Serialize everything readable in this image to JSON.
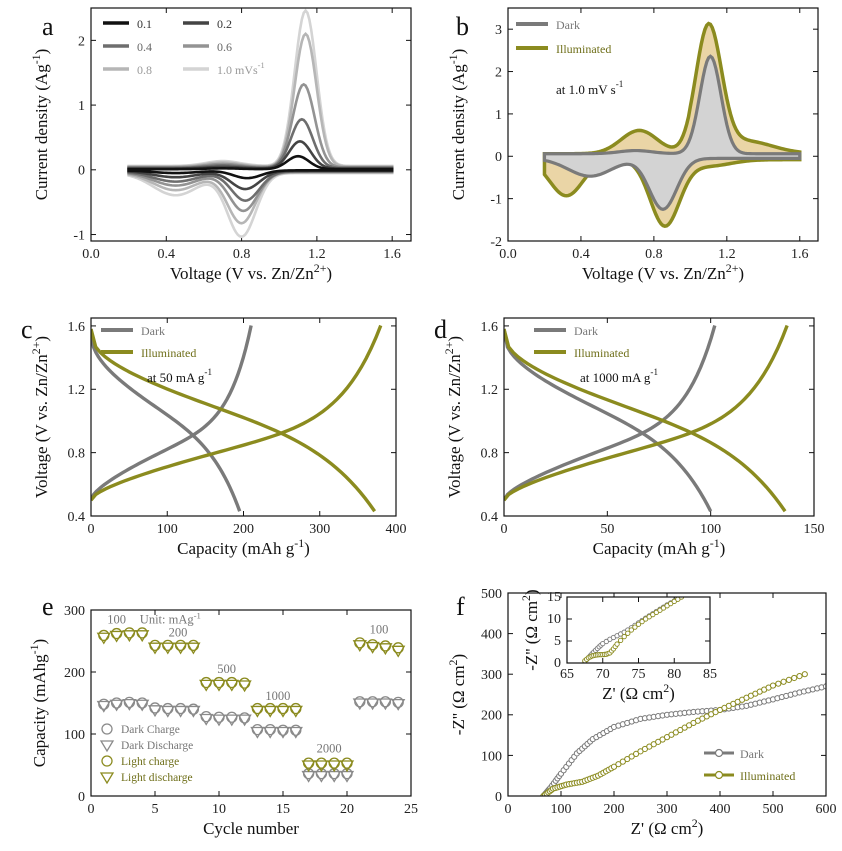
{
  "colors": {
    "dark": "#7a7a7a",
    "illum": "#8b8b1f",
    "fill_dark": "#d3d3d3",
    "fill_illum": "#ead5a6",
    "cv": [
      "#111111",
      "#444444",
      "#6e6e6e",
      "#939393",
      "#b6b6b6",
      "#d4d4d4"
    ]
  },
  "chart_data": [
    {
      "type": "line",
      "panel": "a",
      "xlabel": "Voltage (V vs. Zn/Zn",
      "xlabel_sup": "2+",
      "xlabel_end": ")",
      "ylabel": "Current density (Ag",
      "ylabel_sup": "-1",
      "ylabel_end": ")",
      "xlim": [
        0,
        1.7
      ],
      "ylim": [
        -1.1,
        2.5
      ],
      "xticks": [
        "0.0",
        "0.4",
        "0.8",
        "1.2",
        "1.6"
      ],
      "yticks": [
        "-1",
        "0",
        "1",
        "2"
      ],
      "legend": [
        "0.1",
        "0.2",
        "0.4",
        "0.6",
        "0.8",
        "1.0 mVs"
      ],
      "legend_unit_sup": "-1",
      "series": [
        {
          "name": "0.1",
          "peak_ox": [
            1.1,
            0.2
          ],
          "peak_red": [
            0.83,
            -0.12
          ]
        },
        {
          "name": "0.2",
          "peak_ox": [
            1.11,
            0.42
          ],
          "peak_red": [
            0.82,
            -0.28
          ]
        },
        {
          "name": "0.4",
          "peak_ox": [
            1.12,
            0.75
          ],
          "peak_red": [
            0.82,
            -0.45
          ]
        },
        {
          "name": "0.6",
          "peak_ox": [
            1.13,
            1.28
          ],
          "peak_red": [
            0.81,
            -0.6
          ]
        },
        {
          "name": "0.8",
          "peak_ox": [
            1.14,
            2.05
          ],
          "peak_red": [
            0.8,
            -0.78
          ]
        },
        {
          "name": "1.0",
          "peak_ox": [
            1.14,
            2.4
          ],
          "peak_red": [
            0.8,
            -0.98
          ]
        }
      ]
    },
    {
      "type": "area",
      "panel": "b",
      "xlabel": "Voltage (V vs. Zn/Zn",
      "xlabel_sup": "2+",
      "xlabel_end": ")",
      "ylabel": "Current density (Ag",
      "ylabel_sup": "-1",
      "ylabel_end": ")",
      "xlim": [
        0,
        1.7
      ],
      "ylim": [
        -2,
        3.5
      ],
      "xticks": [
        "0.0",
        "0.4",
        "0.8",
        "1.2",
        "1.6"
      ],
      "yticks": [
        "-2",
        "-1",
        "0",
        "1",
        "2",
        "3"
      ],
      "legend": [
        "Dark",
        "Illuminated"
      ],
      "annotation": "at 1.0 mV s",
      "annotation_sup": "-1",
      "series": [
        {
          "name": "Dark",
          "peak_ox": [
            1.11,
            2.3
          ],
          "peak_red": [
            0.85,
            -1.2
          ]
        },
        {
          "name": "Illuminated",
          "peak_ox": [
            1.1,
            3.25
          ],
          "peak_red": [
            0.86,
            -1.55
          ]
        }
      ]
    },
    {
      "type": "line",
      "panel": "c",
      "xlabel": "Capacity (mAh g",
      "xlabel_sup": "-1",
      "xlabel_end": ")",
      "ylabel": "Voltage (V vs. Zn/Zn",
      "ylabel_sup": "2+",
      "ylabel_end": ")",
      "xlim": [
        0,
        400
      ],
      "ylim": [
        0.4,
        1.65
      ],
      "xticks": [
        "0",
        "100",
        "200",
        "300",
        "400"
      ],
      "yticks": [
        "0.4",
        "0.8",
        "1.2",
        "1.6"
      ],
      "legend": [
        "Dark",
        "Illuminated"
      ],
      "annotation": "at 50 mA g",
      "annotation_sup": "-1",
      "series": [
        {
          "name": "Dark",
          "charge_capacity": 210,
          "discharge_capacity": 195
        },
        {
          "name": "Illuminated",
          "charge_capacity": 380,
          "discharge_capacity": 372
        }
      ]
    },
    {
      "type": "line",
      "panel": "d",
      "xlabel": "Capacity (mAh g",
      "xlabel_sup": "-1",
      "xlabel_end": ")",
      "ylabel": "Voltage (V vs. Zn/Zn",
      "ylabel_sup": "2+",
      "ylabel_end": ")",
      "xlim": [
        0,
        150
      ],
      "ylim": [
        0.4,
        1.65
      ],
      "xticks": [
        "0",
        "50",
        "100",
        "150"
      ],
      "yticks": [
        "0.4",
        "0.8",
        "1.2",
        "1.6"
      ],
      "legend": [
        "Dark",
        "Illuminated"
      ],
      "annotation": "at 1000 mA g",
      "annotation_sup": "-1",
      "series": [
        {
          "name": "Dark",
          "charge_capacity": 102,
          "discharge_capacity": 100
        },
        {
          "name": "Illuminated",
          "charge_capacity": 137,
          "discharge_capacity": 136
        }
      ]
    },
    {
      "type": "scatter",
      "panel": "e",
      "xlabel": "Cycle number",
      "ylabel": "Capacity (mAhg",
      "ylabel_sup": "-1",
      "ylabel_end": ")",
      "xlim": [
        0,
        25
      ],
      "ylim": [
        0,
        300
      ],
      "xticks": [
        "0",
        "5",
        "10",
        "15",
        "20",
        "25"
      ],
      "yticks": [
        "0",
        "100",
        "200",
        "300"
      ],
      "legend": [
        "Dark Charge",
        "Dark Discharge",
        "Light charge",
        "Light discharge"
      ],
      "rate_labels": [
        {
          "text": "100",
          "x": 2.0,
          "y": 278
        },
        {
          "text": "Unit: mAg",
          "sup": "-1",
          "x": 6.2,
          "y": 278
        },
        {
          "text": "200",
          "x": 6.8,
          "y": 257
        },
        {
          "text": "500",
          "x": 10.6,
          "y": 198
        },
        {
          "text": "1000",
          "x": 14.6,
          "y": 155
        },
        {
          "text": "2000",
          "x": 18.6,
          "y": 70
        },
        {
          "text": "100",
          "x": 22.5,
          "y": 262
        }
      ],
      "cycles": [
        1,
        2,
        3,
        4,
        5,
        6,
        7,
        8,
        9,
        10,
        11,
        12,
        13,
        14,
        15,
        16,
        17,
        18,
        19,
        20,
        21,
        22,
        23,
        24
      ],
      "series": [
        {
          "name": "Dark Charge",
          "values": [
            148,
            150,
            151,
            150,
            142,
            141,
            141,
            140,
            128,
            127,
            127,
            126,
            107,
            107,
            106,
            106,
            36,
            36,
            36,
            36,
            152,
            152,
            152,
            151
          ]
        },
        {
          "name": "Dark Discharge",
          "values": [
            146,
            148,
            149,
            148,
            139,
            138,
            138,
            138,
            125,
            124,
            124,
            124,
            104,
            104,
            104,
            104,
            33,
            33,
            33,
            33,
            150,
            150,
            150,
            149
          ]
        },
        {
          "name": "Light charge",
          "values": [
            259,
            262,
            263,
            263,
            243,
            243,
            243,
            243,
            183,
            183,
            183,
            182,
            141,
            141,
            141,
            141,
            53,
            53,
            53,
            53,
            247,
            244,
            242,
            239
          ]
        },
        {
          "name": "Light discharge",
          "values": [
            256,
            259,
            260,
            260,
            240,
            240,
            240,
            240,
            180,
            180,
            180,
            179,
            138,
            138,
            138,
            138,
            50,
            50,
            50,
            50,
            244,
            241,
            239,
            235
          ]
        }
      ]
    },
    {
      "type": "line",
      "panel": "f",
      "xlabel": "Z' (Ω cm",
      "xlabel_sup": "2",
      "xlabel_end": ")",
      "ylabel": "-Z'' (Ω cm",
      "ylabel_sup": "2",
      "ylabel_end": ")",
      "xlim": [
        0,
        600
      ],
      "ylim": [
        0,
        500
      ],
      "xticks": [
        "0",
        "100",
        "200",
        "300",
        "400",
        "500",
        "600"
      ],
      "yticks": [
        "0",
        "100",
        "200",
        "300",
        "400",
        "500"
      ],
      "legend": [
        "Dark",
        "Illuminated"
      ],
      "series": [
        {
          "name": "Dark",
          "x": [
            67,
            80,
            100,
            130,
            160,
            200,
            250,
            300,
            350,
            400,
            450,
            500,
            550,
            600
          ],
          "y": [
            0,
            20,
            55,
            105,
            140,
            170,
            190,
            200,
            207,
            212,
            222,
            238,
            255,
            270
          ]
        },
        {
          "name": "Illuminated",
          "x": [
            67,
            85,
            110,
            140,
            170,
            200,
            250,
            300,
            350,
            400,
            450,
            500,
            560
          ],
          "y": [
            0,
            18,
            28,
            35,
            50,
            72,
            110,
            145,
            180,
            212,
            242,
            272,
            300
          ]
        }
      ],
      "inset": {
        "xlabel": "Z' (Ω cm",
        "xlabel_sup": "2",
        "xlabel_end": ")",
        "ylabel": "-Z'' (Ω cm",
        "ylabel_sup": "2",
        "ylabel_end": ")",
        "xlim": [
          65,
          85
        ],
        "ylim": [
          0,
          15
        ],
        "xticks": [
          "65",
          "70",
          "75",
          "80",
          "85"
        ],
        "yticks": [
          "0",
          "5",
          "10",
          "15"
        ],
        "series": [
          {
            "name": "Dark",
            "x": [
              67.5,
              68,
              68.5,
              69,
              69.5,
              70,
              71,
              72,
              73,
              74,
              75,
              76,
              77,
              78,
              79,
              80,
              81
            ],
            "y": [
              0.4,
              1.2,
              2.1,
              2.9,
              3.7,
              4.4,
              5.4,
              6.2,
              7.0,
              8.0,
              9.1,
              10.2,
              11.2,
              12.2,
              13.2,
              14.1,
              15.0
            ]
          },
          {
            "name": "Illuminated",
            "x": [
              67.5,
              68,
              68.5,
              69,
              69.5,
              70,
              70.5,
              71,
              71.5,
              72,
              73,
              74,
              75,
              76,
              77,
              78,
              79,
              80,
              81
            ],
            "y": [
              0.5,
              1.2,
              1.6,
              1.8,
              1.9,
              1.9,
              2.0,
              2.3,
              3.2,
              4.3,
              6.0,
              7.5,
              8.8,
              10.0,
              11.0,
              12.0,
              13.0,
              14.0,
              15.0
            ]
          }
        ]
      }
    }
  ]
}
